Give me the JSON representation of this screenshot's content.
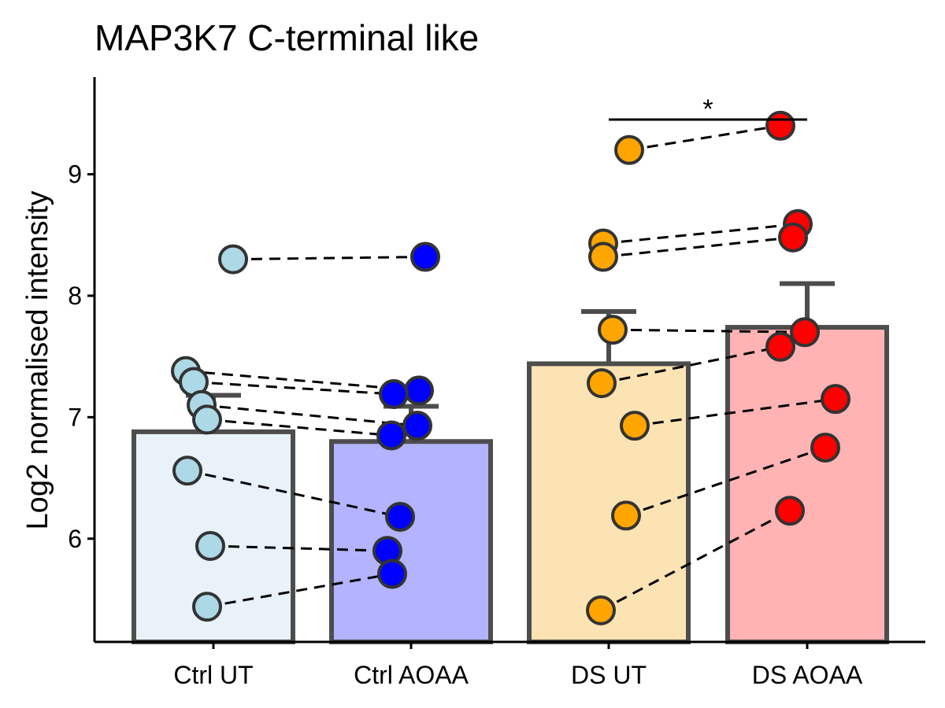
{
  "chart_data": {
    "type": "bar",
    "title": "MAP3K7 C-terminal like",
    "ylabel": "Log2 normalised intensity",
    "xlabel": "",
    "ylim": [
      5.15,
      9.8
    ],
    "yticks": [
      6,
      7,
      8,
      9
    ],
    "categories": [
      "Ctrl UT",
      "Ctrl AOAA",
      "DS UT",
      "DS AOAA"
    ],
    "bar_values": [
      6.88,
      6.8,
      7.44,
      7.74
    ],
    "error_upper": [
      7.18,
      7.09,
      7.87,
      8.1
    ],
    "bar_fill_colors": [
      "#E8F2F8",
      "#B3B3FF",
      "#FCE3B3",
      "#FFB3B3"
    ],
    "point_colors": [
      "#ADD8E6",
      "#0000FF",
      "#FFA500",
      "#FF0000"
    ],
    "points": [
      [
        8.3,
        7.38,
        7.29,
        7.1,
        6.98,
        6.56,
        5.94,
        5.44
      ],
      [
        8.32,
        7.22,
        7.19,
        6.93,
        6.85,
        6.18,
        5.9,
        5.71
      ],
      [
        9.2,
        8.43,
        8.32,
        7.72,
        7.28,
        6.93,
        6.19,
        5.41
      ],
      [
        9.4,
        8.59,
        8.48,
        7.7,
        7.58,
        7.15,
        6.75,
        6.23
      ]
    ],
    "pairs": [
      {
        "group_a": 0,
        "group_b": 1,
        "values_a": [
          8.3,
          7.38,
          7.29,
          7.1,
          6.98,
          6.56,
          5.94,
          5.44
        ],
        "values_b": [
          8.32,
          7.22,
          7.19,
          6.93,
          6.85,
          6.18,
          5.9,
          5.71
        ]
      },
      {
        "group_a": 2,
        "group_b": 3,
        "values_a": [
          9.2,
          8.43,
          8.32,
          7.72,
          7.28,
          6.93,
          6.19,
          5.41
        ],
        "values_b": [
          9.4,
          8.59,
          8.48,
          7.7,
          7.58,
          7.15,
          6.75,
          6.23
        ]
      }
    ],
    "significance": [
      {
        "from": "DS UT",
        "to": "DS AOAA",
        "y": 9.45,
        "label": "*"
      }
    ],
    "grid": false,
    "legend": "none"
  }
}
